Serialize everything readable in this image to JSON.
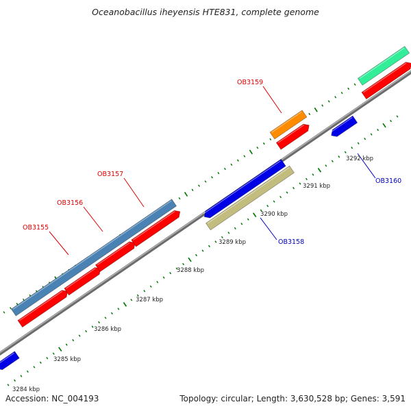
{
  "title": "Oceanobacillus iheyensis HTE831, complete genome",
  "footer": {
    "accession": "Accession: NC_004193",
    "summary": "Topology: circular; Length: 3,630,528 bp; Genes: 3,591"
  },
  "colors": {
    "backbone": "#8c8c8c",
    "forward_cds": "#ff0000",
    "reverse_cds": "#0000e6",
    "forward_label": "#dd0000",
    "reverse_label": "#0000bb",
    "tick": "#007a00",
    "cog_blue": "#4a82b3",
    "cog_olive": "#c2bd7e",
    "cog_orange": "#ff8c00",
    "cog_green": "#33ee99"
  },
  "tick_labels": [
    "3284 kbp",
    "3285 kbp",
    "3286 kbp",
    "3287 kbp",
    "3288 kbp",
    "3289 kbp",
    "3290 kbp",
    "3291 kbp",
    "3292 kbp"
  ],
  "genes": [
    {
      "id": "OB3155",
      "strand": "forward"
    },
    {
      "id": "OB3156",
      "strand": "forward"
    },
    {
      "id": "OB3157",
      "strand": "forward"
    },
    {
      "id": "OB3158",
      "strand": "reverse"
    },
    {
      "id": "OB3159",
      "strand": "forward"
    },
    {
      "id": "OB3160",
      "strand": "reverse"
    }
  ]
}
